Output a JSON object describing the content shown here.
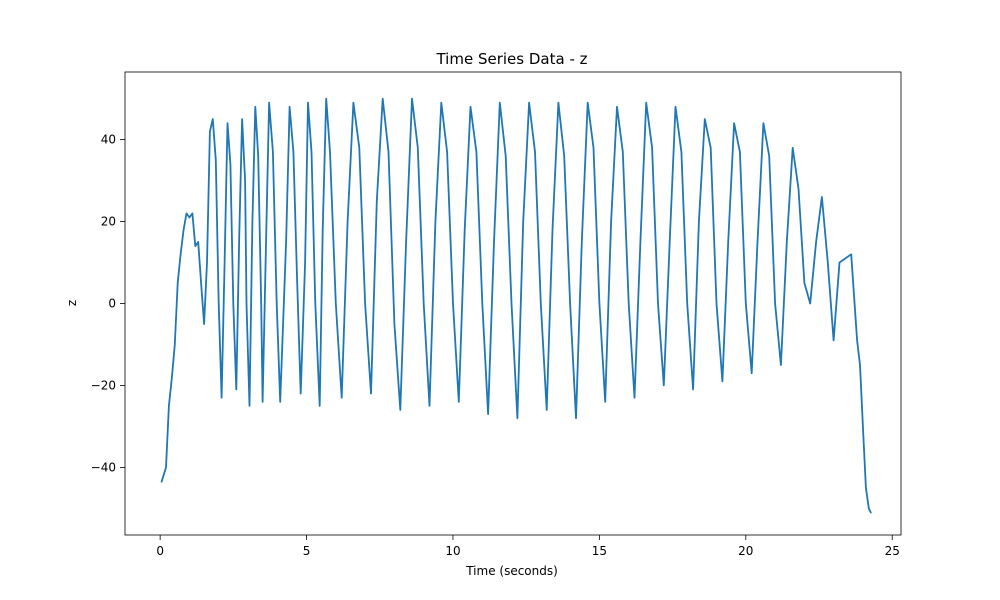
{
  "chart_data": {
    "type": "line",
    "title": "Time Series Data - z",
    "xlabel": "Time (seconds)",
    "ylabel": "z",
    "xlim": [
      -1.2,
      25.3
    ],
    "ylim": [
      -56.5,
      56.5
    ],
    "xticks": [
      0,
      5,
      10,
      15,
      20,
      25
    ],
    "xtick_labels": [
      "0",
      "5",
      "10",
      "15",
      "20",
      "25"
    ],
    "yticks": [
      -40,
      -20,
      0,
      20,
      40
    ],
    "ytick_labels": [
      "−40",
      "−20",
      "0",
      "20",
      "40"
    ],
    "grid": false,
    "legend": "none",
    "series_color": "#1f77b4",
    "series": [
      {
        "x": [
          0.05,
          0.2,
          0.3,
          0.4,
          0.5,
          0.6,
          0.7,
          0.8,
          0.9,
          1.0,
          1.1,
          1.2,
          1.3,
          1.4,
          1.5,
          1.6,
          1.7,
          1.8,
          1.9,
          2.0,
          2.1,
          2.2,
          2.3,
          2.4,
          2.5,
          2.6,
          2.7,
          2.8,
          2.9,
          2.95,
          3.05,
          3.15,
          3.25,
          3.35,
          3.45,
          3.5,
          3.6,
          3.72,
          3.85,
          3.98,
          4.1,
          4.3,
          4.42,
          4.55,
          4.68,
          4.8,
          4.95,
          5.05,
          5.17,
          5.3,
          5.45,
          5.55,
          5.67,
          5.8,
          6.0,
          6.2,
          6.4,
          6.6,
          6.8,
          7.0,
          7.2,
          7.4,
          7.6,
          7.8,
          8.0,
          8.2,
          8.4,
          8.6,
          8.8,
          9.0,
          9.2,
          9.4,
          9.6,
          9.8,
          10.0,
          10.2,
          10.4,
          10.6,
          10.8,
          11.0,
          11.2,
          11.4,
          11.6,
          11.8,
          12.0,
          12.2,
          12.4,
          12.6,
          12.8,
          13.0,
          13.2,
          13.4,
          13.6,
          13.8,
          14.0,
          14.2,
          14.4,
          14.6,
          14.8,
          15.0,
          15.2,
          15.4,
          15.6,
          15.8,
          16.0,
          16.2,
          16.4,
          16.6,
          16.8,
          17.0,
          17.2,
          17.4,
          17.6,
          17.8,
          18.0,
          18.2,
          18.4,
          18.6,
          18.8,
          19.0,
          19.2,
          19.4,
          19.6,
          19.8,
          20.0,
          20.2,
          20.4,
          20.6,
          20.8,
          21.0,
          21.2,
          21.4,
          21.6,
          21.8,
          22.0,
          22.2,
          22.4,
          22.6,
          22.8,
          23.0,
          23.2,
          23.4,
          23.6,
          23.8,
          23.9,
          24.0,
          24.1,
          24.2,
          24.27
        ],
        "y": [
          -43.5,
          -40,
          -25,
          -18,
          -10,
          5,
          12,
          18,
          22,
          21,
          22,
          14,
          15,
          5,
          -5,
          10,
          42,
          45,
          35,
          0,
          -23,
          10,
          44,
          34,
          0,
          -21,
          16,
          45,
          30,
          0,
          -25,
          20,
          48,
          36,
          0,
          -24,
          10,
          49,
          37,
          0,
          -24,
          15,
          48,
          37,
          5,
          -22,
          10,
          49,
          37,
          0,
          -25,
          18,
          50,
          37,
          0,
          -23,
          20,
          49,
          38,
          0,
          -22,
          25,
          50,
          37,
          -5,
          -26,
          15,
          50,
          38,
          0,
          -25,
          20,
          49,
          37,
          0,
          -24,
          18,
          48,
          37,
          0,
          -27,
          15,
          49,
          36,
          0,
          -28,
          20,
          49,
          37,
          0,
          -26,
          18,
          49,
          36,
          0,
          -28,
          15,
          49,
          38,
          0,
          -24,
          20,
          48,
          37,
          0,
          -23,
          15,
          49,
          38,
          0,
          -20,
          15,
          48,
          37,
          0,
          -21,
          20,
          45,
          38,
          0,
          -19,
          15,
          44,
          37,
          0,
          -17,
          15,
          44,
          36,
          0,
          -15,
          15,
          38,
          28,
          5,
          0,
          15,
          26,
          10,
          -9,
          10,
          11,
          12,
          -9,
          -15,
          -30,
          -45,
          -50,
          -51
        ]
      }
    ]
  }
}
